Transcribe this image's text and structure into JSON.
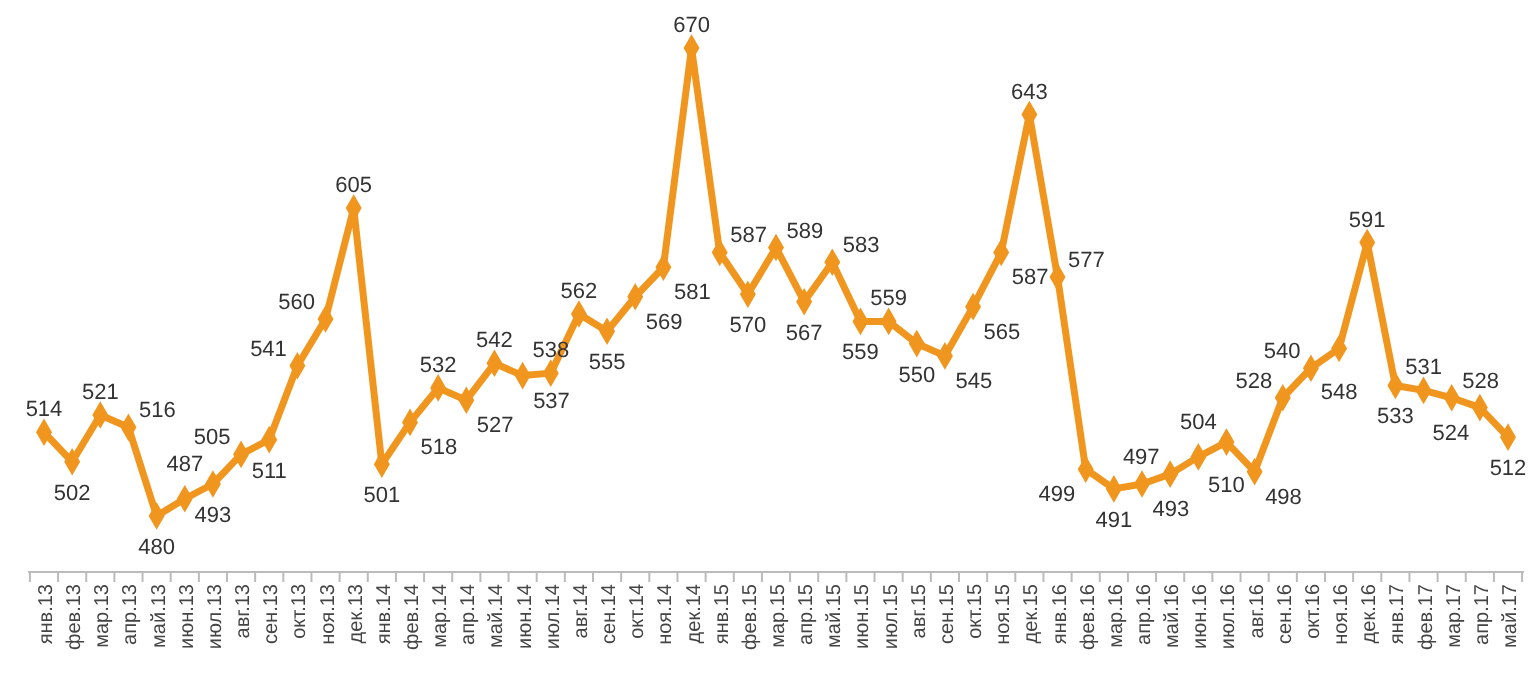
{
  "chart_data": {
    "type": "line",
    "categories": [
      "янв.13",
      "фев.13",
      "мар.13",
      "апр.13",
      "май.13",
      "июн.13",
      "июл.13",
      "авг.13",
      "сен.13",
      "окт.13",
      "ноя.13",
      "дек.13",
      "янв.14",
      "фев.14",
      "мар.14",
      "апр.14",
      "май.14",
      "июн.14",
      "июл.14",
      "авг.14",
      "сен.14",
      "окт.14",
      "ноя.14",
      "дек.14",
      "янв.15",
      "фев.15",
      "мар.15",
      "апр.15",
      "май.15",
      "июн.15",
      "июл.15",
      "авг.15",
      "сен.15",
      "окт.15",
      "ноя.15",
      "дек.15",
      "янв.16",
      "фев.16",
      "мар.16",
      "апр.16",
      "май.16",
      "июн.16",
      "июл.16",
      "авг.16",
      "сен.16",
      "окт.16",
      "ноя.16",
      "дек.16",
      "янв.17",
      "фев.17",
      "мар.17",
      "апр.17",
      "май.17"
    ],
    "series": [
      {
        "color": "#f0961e",
        "values": [
          514,
          502,
          521,
          516,
          480,
          487,
          493,
          505,
          511,
          541,
          560,
          605,
          501,
          518,
          532,
          527,
          542,
          537,
          538,
          562,
          555,
          569,
          581,
          670,
          587,
          570,
          589,
          567,
          583,
          559,
          559,
          550,
          545,
          565,
          587,
          643,
          577,
          499,
          491,
          493,
          497,
          504,
          510,
          498,
          528,
          540,
          548,
          591,
          533,
          531,
          528,
          524,
          512
        ]
      }
    ],
    "data_labels": true,
    "marker": "diamond",
    "line_style": "solid"
  }
}
